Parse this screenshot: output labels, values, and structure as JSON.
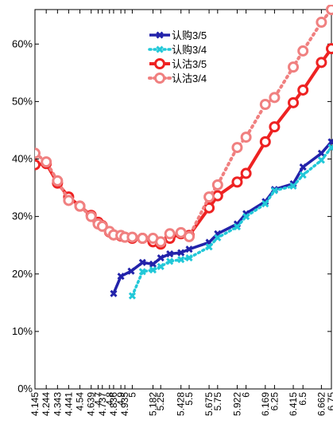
{
  "chart_data": {
    "type": "line",
    "title": "",
    "xlabel": "",
    "ylabel": "",
    "x_categories": [
      "4.145",
      "4.244",
      "4.343",
      "4.441",
      "4.54",
      "4.639",
      "4.7",
      "4.737",
      "4.8",
      "4.836",
      "4.9",
      "4.935",
      "5",
      "5.182",
      "5.25",
      "5.428",
      "5.5",
      "5.675",
      "5.75",
      "5.922",
      "6",
      "6.169",
      "6.25",
      "6.415",
      "6.5",
      "6.662",
      "6.75"
    ],
    "ylim": [
      0,
      0.66
    ],
    "yticks": [
      0,
      0.1,
      0.2,
      0.3,
      0.4,
      0.5,
      0.6
    ],
    "ytick_labels": [
      "0%",
      "10%",
      "20%",
      "30%",
      "40%",
      "50%",
      "60%"
    ],
    "grid": false,
    "legend_position": "top-center",
    "series": [
      {
        "name": "认购3/5",
        "color": "#2222aa",
        "line": "solid",
        "marker": "x",
        "x": [
          4.836,
          4.9,
          4.99,
          5.09,
          5.182,
          5.25,
          5.33,
          5.428,
          5.5,
          5.675,
          5.75,
          5.922,
          6.0,
          6.169,
          6.25,
          6.415,
          6.5,
          6.662,
          6.75
        ],
        "values": [
          0.166,
          0.196,
          0.205,
          0.22,
          0.217,
          0.228,
          0.235,
          0.237,
          0.243,
          0.255,
          0.27,
          0.287,
          0.305,
          0.326,
          0.347,
          0.357,
          0.386,
          0.41,
          0.43
        ]
      },
      {
        "name": "认购3/4",
        "color": "#22c8d8",
        "line": "dotted",
        "marker": "x",
        "x": [
          5.0,
          5.09,
          5.182,
          5.25,
          5.33,
          5.428,
          5.5,
          5.675,
          5.75,
          5.922,
          6.0,
          6.169,
          6.25,
          6.415,
          6.5,
          6.662,
          6.75
        ],
        "values": [
          0.162,
          0.204,
          0.207,
          0.213,
          0.222,
          0.225,
          0.228,
          0.247,
          0.263,
          0.282,
          0.3,
          0.322,
          0.345,
          0.353,
          0.372,
          0.398,
          0.42
        ]
      },
      {
        "name": "认沽3/5",
        "color": "#ee2222",
        "line": "solid",
        "marker": "o",
        "x": [
          4.145,
          4.244,
          4.343,
          4.441,
          4.54,
          4.639,
          4.7,
          4.737,
          4.8,
          4.836,
          4.9,
          4.935,
          5.0,
          5.09,
          5.182,
          5.25,
          5.33,
          5.428,
          5.5,
          5.675,
          5.75,
          5.922,
          6.0,
          6.169,
          6.25,
          6.415,
          6.5,
          6.662,
          6.75
        ],
        "values": [
          0.39,
          0.392,
          0.358,
          0.334,
          0.318,
          0.302,
          0.29,
          0.284,
          0.273,
          0.268,
          0.266,
          0.264,
          0.262,
          0.262,
          0.256,
          0.252,
          0.262,
          0.27,
          0.267,
          0.315,
          0.336,
          0.36,
          0.375,
          0.43,
          0.456,
          0.498,
          0.52,
          0.568,
          0.592
        ]
      },
      {
        "name": "认沽3/4",
        "color": "#f08080",
        "line": "dotted",
        "marker": "o",
        "x": [
          4.145,
          4.244,
          4.343,
          4.441,
          4.54,
          4.639,
          4.7,
          4.737,
          4.8,
          4.836,
          4.9,
          4.935,
          5.0,
          5.09,
          5.182,
          5.25,
          5.33,
          5.428,
          5.5,
          5.675,
          5.75,
          5.922,
          6.0,
          6.169,
          6.25,
          6.415,
          6.5,
          6.662,
          6.75
        ],
        "values": [
          0.41,
          0.395,
          0.362,
          0.328,
          0.318,
          0.3,
          0.287,
          0.283,
          0.274,
          0.268,
          0.267,
          0.264,
          0.264,
          0.262,
          0.262,
          0.256,
          0.27,
          0.272,
          0.265,
          0.334,
          0.355,
          0.42,
          0.438,
          0.495,
          0.507,
          0.56,
          0.588,
          0.638,
          0.66
        ]
      }
    ]
  }
}
